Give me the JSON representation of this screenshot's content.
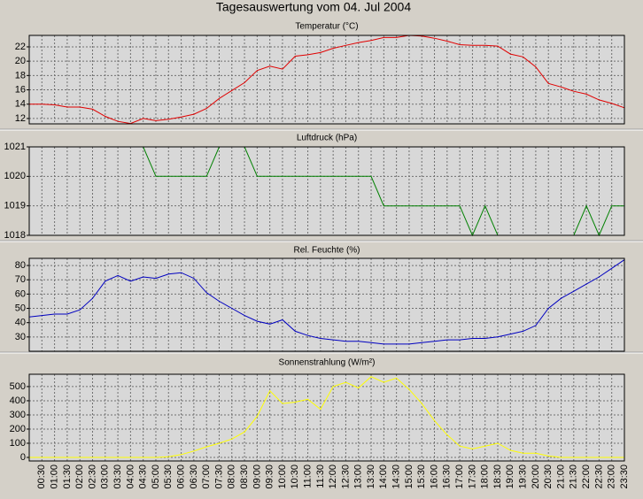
{
  "title": "Tagesauswertung vom 04. Jul 2004",
  "chart_data": [
    {
      "type": "line",
      "title": "Temperatur (°C)",
      "ylim": [
        11.25,
        23.6
      ],
      "yticks": [
        12,
        14,
        16,
        18,
        20,
        22
      ],
      "grid": true,
      "series": [
        {
          "name": "Temperatur",
          "color": "#e00000",
          "values": [
            14.0,
            14.0,
            13.9,
            13.6,
            13.6,
            13.3,
            12.3,
            11.6,
            11.3,
            12.0,
            11.7,
            11.9,
            12.2,
            12.6,
            13.4,
            14.8,
            15.9,
            17.0,
            18.7,
            19.3,
            18.9,
            20.7,
            20.9,
            21.2,
            21.8,
            22.2,
            22.6,
            22.9,
            23.3,
            23.3,
            23.6,
            23.5,
            23.2,
            22.8,
            22.3,
            22.2,
            22.2,
            22.1,
            21.0,
            20.6,
            19.2,
            16.9,
            16.4,
            15.8,
            15.4,
            14.6,
            14.1,
            13.5
          ]
        }
      ]
    },
    {
      "type": "line",
      "title": "Luftdruck (hPa)",
      "ylim": [
        1018,
        1021
      ],
      "yticks": [
        1018,
        1019,
        1020,
        1021
      ],
      "grid": true,
      "series": [
        {
          "name": "Luftdruck",
          "color": "#008000",
          "values": [
            1021,
            1021,
            1021,
            1021,
            1021,
            1021,
            1021,
            1021,
            1021,
            1021,
            1020,
            1020,
            1020,
            1020,
            1020,
            1021,
            1021,
            1021,
            1020,
            1020,
            1020,
            1020,
            1020,
            1020,
            1020,
            1020,
            1020,
            1020,
            1019,
            1019,
            1019,
            1019,
            1019,
            1019,
            1019,
            1018,
            1019,
            1018,
            1018,
            1018,
            1018,
            1018,
            1018,
            1018,
            1019,
            1018,
            1019,
            1019
          ]
        }
      ]
    },
    {
      "type": "line",
      "title": "Rel. Feuchte (%)",
      "ylim": [
        20,
        85
      ],
      "yticks": [
        30,
        40,
        50,
        60,
        70,
        80
      ],
      "grid": true,
      "series": [
        {
          "name": "Rel. Feuchte",
          "color": "#0000c0",
          "values": [
            44,
            45,
            46,
            46,
            49,
            57,
            69,
            73,
            69,
            72,
            71,
            74,
            75,
            71,
            61,
            55,
            50,
            45,
            41,
            39,
            42,
            34,
            31,
            29,
            28,
            27,
            27,
            26,
            25,
            25,
            25,
            26,
            27,
            28,
            28,
            29,
            29,
            30,
            32,
            34,
            38,
            50,
            57,
            62,
            67,
            72,
            78,
            84
          ]
        }
      ]
    },
    {
      "type": "line",
      "title": "Sonnenstrahlung (W/m²)",
      "ylim": [
        -25,
        587
      ],
      "yticks": [
        0,
        100,
        200,
        300,
        400,
        500
      ],
      "grid": true,
      "categories": [
        null,
        "00:30",
        "01:00",
        "01:30",
        "02:00",
        "02:30",
        "03:00",
        "03:30",
        "04:00",
        "04:30",
        "05:00",
        "05:30",
        "06:00",
        "06:30",
        "07:00",
        "07:30",
        "08:00",
        "08:30",
        "09:00",
        "09:30",
        "10:00",
        "10:30",
        "11:00",
        "11:30",
        "12:00",
        "12:30",
        "13:00",
        "13:30",
        "14:00",
        "14:30",
        "15:00",
        "15:30",
        "16:00",
        "16:30",
        "17:00",
        "17:30",
        "18:00",
        "18:30",
        "19:00",
        "19:30",
        "20:00",
        "20:30",
        "21:00",
        "21:30",
        "22:00",
        "22:30",
        "23:00",
        "23:30"
      ],
      "series": [
        {
          "name": "Sonnenstrahlung",
          "color": "#ffff00",
          "values": [
            0,
            0,
            0,
            0,
            0,
            0,
            0,
            0,
            0,
            0,
            0,
            5,
            20,
            45,
            75,
            100,
            130,
            180,
            290,
            470,
            380,
            390,
            410,
            340,
            500,
            530,
            490,
            570,
            530,
            560,
            480,
            380,
            260,
            160,
            80,
            60,
            80,
            100,
            50,
            30,
            30,
            10,
            0,
            0,
            0,
            0,
            0,
            0
          ]
        }
      ]
    }
  ]
}
